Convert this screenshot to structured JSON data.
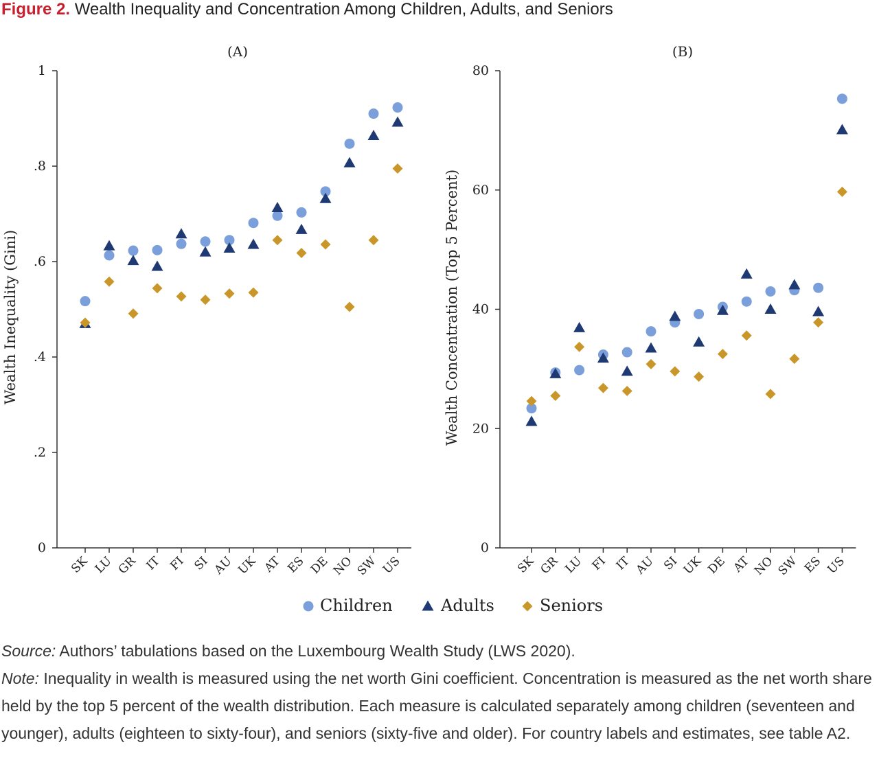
{
  "figure": {
    "label": "Figure 2.",
    "title": "Wealth Inequality and Concentration Among Children, Adults, and Seniors"
  },
  "colors": {
    "children": "#7b9fdb",
    "adults": "#1f3a73",
    "seniors": "#c9962a"
  },
  "legend": [
    {
      "key": "children",
      "label": "Children",
      "marker": "circle"
    },
    {
      "key": "adults",
      "label": "Adults",
      "marker": "triangle"
    },
    {
      "key": "seniors",
      "label": "Seniors",
      "marker": "diamond"
    }
  ],
  "chart_data": [
    {
      "type": "scatter",
      "panel": "(A)",
      "ylabel": "Wealth Inequality (Gini)",
      "ylim": [
        0,
        1
      ],
      "yticks": [
        0,
        0.2,
        0.4,
        0.6,
        0.8,
        1
      ],
      "ytick_labels": [
        "0",
        ".2",
        ".4",
        ".6",
        ".8",
        "1"
      ],
      "categories": [
        "SK",
        "LU",
        "GR",
        "IT",
        "FI",
        "SI",
        "AU",
        "UK",
        "AT",
        "ES",
        "DE",
        "NO",
        "SW",
        "US"
      ],
      "series": [
        {
          "name": "Children",
          "values": [
            0.517,
            0.613,
            0.623,
            0.624,
            0.637,
            0.642,
            0.645,
            0.681,
            0.696,
            0.703,
            0.747,
            0.847,
            0.91,
            0.923
          ]
        },
        {
          "name": "Adults",
          "values": [
            0.47,
            0.633,
            0.602,
            0.59,
            0.658,
            0.62,
            0.628,
            0.636,
            0.713,
            0.667,
            0.732,
            0.807,
            0.864,
            0.892
          ]
        },
        {
          "name": "Seniors",
          "values": [
            0.472,
            0.558,
            0.491,
            0.544,
            0.527,
            0.52,
            0.533,
            0.535,
            0.645,
            0.618,
            0.636,
            0.505,
            0.645,
            0.795
          ]
        }
      ]
    },
    {
      "type": "scatter",
      "panel": "(B)",
      "ylabel": "Wealth Concentration (Top 5 Percent)",
      "ylim": [
        0,
        80
      ],
      "yticks": [
        0,
        20,
        40,
        60,
        80
      ],
      "ytick_labels": [
        "0",
        "20",
        "40",
        "60",
        "80"
      ],
      "categories": [
        "SK",
        "GR",
        "LU",
        "FI",
        "IT",
        "AU",
        "SI",
        "UK",
        "DE",
        "AT",
        "NO",
        "SW",
        "ES",
        "US"
      ],
      "series": [
        {
          "name": "Children",
          "values": [
            23.4,
            29.4,
            29.8,
            32.4,
            32.8,
            36.3,
            37.8,
            39.2,
            40.4,
            41.3,
            43.0,
            43.2,
            43.6,
            75.3
          ]
        },
        {
          "name": "Adults",
          "values": [
            21.2,
            29.2,
            36.9,
            31.8,
            29.6,
            33.5,
            38.8,
            34.5,
            39.8,
            45.9,
            40.0,
            44.1,
            39.6,
            70.1
          ]
        },
        {
          "name": "Seniors",
          "values": [
            24.6,
            25.5,
            33.7,
            26.8,
            26.3,
            30.8,
            29.6,
            28.7,
            32.5,
            35.6,
            25.8,
            31.7,
            37.8,
            59.7
          ]
        }
      ]
    }
  ],
  "notes": {
    "source_label": "Source:",
    "source_text": " Authors’ tabulations based on the Luxembourg Wealth Study (LWS 2020).",
    "note_label": "Note:",
    "note_text": " Inequality in wealth is measured using the net worth Gini coefficient. Concentration is measured as the net worth share held by the top 5 percent of the wealth distribution. Each measure is calculated separately among children (seventeen and younger), adults (eighteen to sixty-four), and seniors (sixty-five and older). For country labels and estimates, see table A2."
  }
}
